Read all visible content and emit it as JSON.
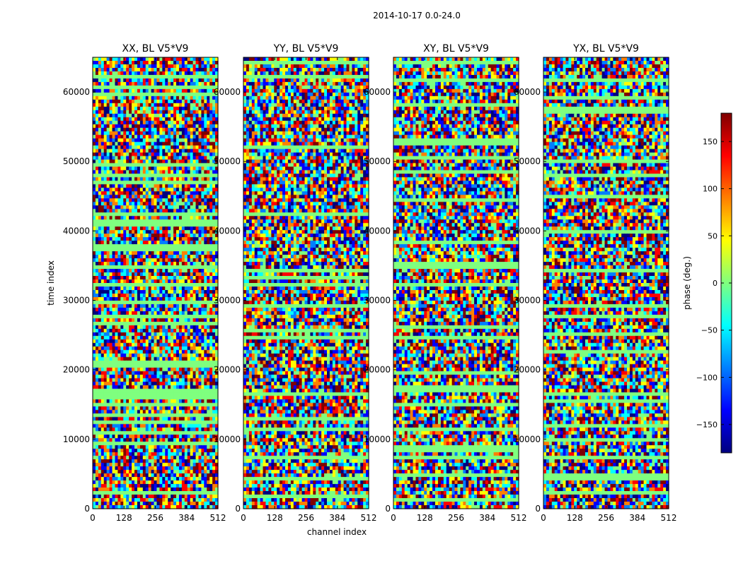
{
  "figure_title": "2014-10-17 0.0-24.0",
  "chart_data": {
    "type": "heatmap",
    "title": "2014-10-17 0.0-24.0",
    "shared_xlabel": "channel index",
    "shared_ylabel": "time index",
    "xlim": [
      0,
      512
    ],
    "ylim": [
      0,
      65000
    ],
    "xticks": [
      0,
      128,
      256,
      384,
      512
    ],
    "yticks": [
      0,
      10000,
      20000,
      30000,
      40000,
      50000,
      60000
    ],
    "xtick_labels": [
      "0",
      "128",
      "256",
      "384",
      "512"
    ],
    "ytick_labels": [
      "0",
      "10000",
      "20000",
      "30000",
      "40000",
      "50000",
      "60000"
    ],
    "panels": [
      {
        "title": "XX, BL V5*V9",
        "xlabel": "",
        "ylabel": "time index"
      },
      {
        "title": "YY, BL V5*V9",
        "xlabel": "channel index",
        "ylabel": ""
      },
      {
        "title": "XY, BL V5*V9",
        "xlabel": "",
        "ylabel": ""
      },
      {
        "title": "YX, BL V5*V9",
        "xlabel": "",
        "ylabel": ""
      }
    ],
    "colorbar": {
      "label": "phase (deg.)",
      "colormap": "jet",
      "range": [
        -180,
        180
      ],
      "ticks": [
        150,
        100,
        50,
        0,
        -50,
        -100,
        -150
      ],
      "tick_labels": [
        "150",
        "100",
        "50",
        "0",
        "−50",
        "−100",
        "−150"
      ]
    },
    "colormap_stops": [
      "#00007f",
      "#0000ff",
      "#007fff",
      "#00ffff",
      "#7fff7f",
      "#ffff00",
      "#ff7f00",
      "#ff0000",
      "#7f0000"
    ]
  }
}
